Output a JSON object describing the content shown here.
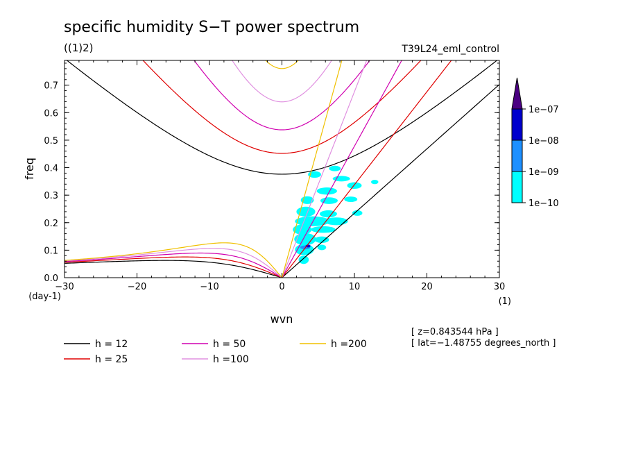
{
  "chart_data": {
    "type": "line",
    "title": "specific humidity S−T power spectrum",
    "subtitle": "((1)2)",
    "experiment": "T39L24_eml_control",
    "xlabel": "wvn",
    "ylabel": "freq",
    "x_unit": "(1)",
    "y_unit": "(day-1)",
    "xlim": [
      -30,
      30
    ],
    "ylim": [
      0.0,
      0.79
    ],
    "x_ticks": [
      -30,
      -20,
      -10,
      0,
      10,
      20,
      30
    ],
    "x_tick_labels": [
      "−30",
      "−20",
      "−10",
      "0",
      "10",
      "20",
      "30"
    ],
    "y_ticks": [
      0.0,
      0.1,
      0.2,
      0.3,
      0.4,
      0.5,
      0.6,
      0.7
    ],
    "y_tick_labels": [
      "0.0",
      "0.1",
      "0.2",
      "0.3",
      "0.4",
      "0.5",
      "0.6",
      "0.7"
    ],
    "grid": false,
    "legend_position": "bottom",
    "series": [
      {
        "name": "h = 12",
        "h": 12,
        "color": "#000000"
      },
      {
        "name": "h = 25",
        "h": 25,
        "color": "#e00000"
      },
      {
        "name": "h = 50",
        "h": 50,
        "color": "#d000b0"
      },
      {
        "name": "h =100",
        "h": 100,
        "color": "#e090e0"
      },
      {
        "name": "h =200",
        "h": 200,
        "color": "#f0c000"
      }
    ],
    "colorbar": {
      "labels": [
        "1e−10",
        "1e−09",
        "1e−08",
        "1e−07"
      ],
      "colors": [
        "#00ffff",
        "#1e90ff",
        "#0000cd",
        "#4b0082"
      ]
    },
    "annotations": [
      "[ z=0.843544 hPa ]",
      "[ lat=−1.48755 degrees_north ]"
    ],
    "contour_blobs": [
      {
        "x": 4.5,
        "y": 0.375,
        "rx": 0.9,
        "ry": 0.012,
        "level": 0
      },
      {
        "x": 7.3,
        "y": 0.397,
        "rx": 0.8,
        "ry": 0.01,
        "level": 0
      },
      {
        "x": 8.2,
        "y": 0.36,
        "rx": 1.2,
        "ry": 0.01,
        "level": 0
      },
      {
        "x": 10.0,
        "y": 0.335,
        "rx": 1.0,
        "ry": 0.012,
        "level": 0
      },
      {
        "x": 12.8,
        "y": 0.348,
        "rx": 0.5,
        "ry": 0.008,
        "level": 0
      },
      {
        "x": 6.2,
        "y": 0.315,
        "rx": 1.4,
        "ry": 0.013,
        "level": 0
      },
      {
        "x": 3.5,
        "y": 0.282,
        "rx": 0.9,
        "ry": 0.014,
        "level": 0
      },
      {
        "x": 6.5,
        "y": 0.28,
        "rx": 1.2,
        "ry": 0.012,
        "level": 0
      },
      {
        "x": 9.5,
        "y": 0.285,
        "rx": 0.9,
        "ry": 0.01,
        "level": 0
      },
      {
        "x": 3.3,
        "y": 0.24,
        "rx": 1.3,
        "ry": 0.018,
        "level": 0
      },
      {
        "x": 6.4,
        "y": 0.232,
        "rx": 1.2,
        "ry": 0.013,
        "level": 0
      },
      {
        "x": 10.4,
        "y": 0.235,
        "rx": 0.7,
        "ry": 0.01,
        "level": 0
      },
      {
        "x": 4.2,
        "y": 0.205,
        "rx": 2.4,
        "ry": 0.018,
        "level": 0
      },
      {
        "x": 7.5,
        "y": 0.205,
        "rx": 1.6,
        "ry": 0.014,
        "level": 0
      },
      {
        "x": 2.8,
        "y": 0.175,
        "rx": 1.3,
        "ry": 0.018,
        "level": 0
      },
      {
        "x": 5.7,
        "y": 0.175,
        "rx": 1.7,
        "ry": 0.012,
        "level": 0
      },
      {
        "x": 3.2,
        "y": 0.14,
        "rx": 1.5,
        "ry": 0.022,
        "level": 0
      },
      {
        "x": 5.5,
        "y": 0.138,
        "rx": 1.0,
        "ry": 0.012,
        "level": 0
      },
      {
        "x": 3.1,
        "y": 0.102,
        "rx": 1.3,
        "ry": 0.02,
        "level": 0
      },
      {
        "x": 5.5,
        "y": 0.11,
        "rx": 0.6,
        "ry": 0.01,
        "level": 0
      },
      {
        "x": 3.0,
        "y": 0.065,
        "rx": 0.7,
        "ry": 0.015,
        "level": 0
      },
      {
        "x": 3.2,
        "y": 0.11,
        "rx": 0.7,
        "ry": 0.007,
        "level": 1
      },
      {
        "x": 3.6,
        "y": 0.115,
        "rx": 0.35,
        "ry": 0.005,
        "level": 2
      }
    ]
  }
}
